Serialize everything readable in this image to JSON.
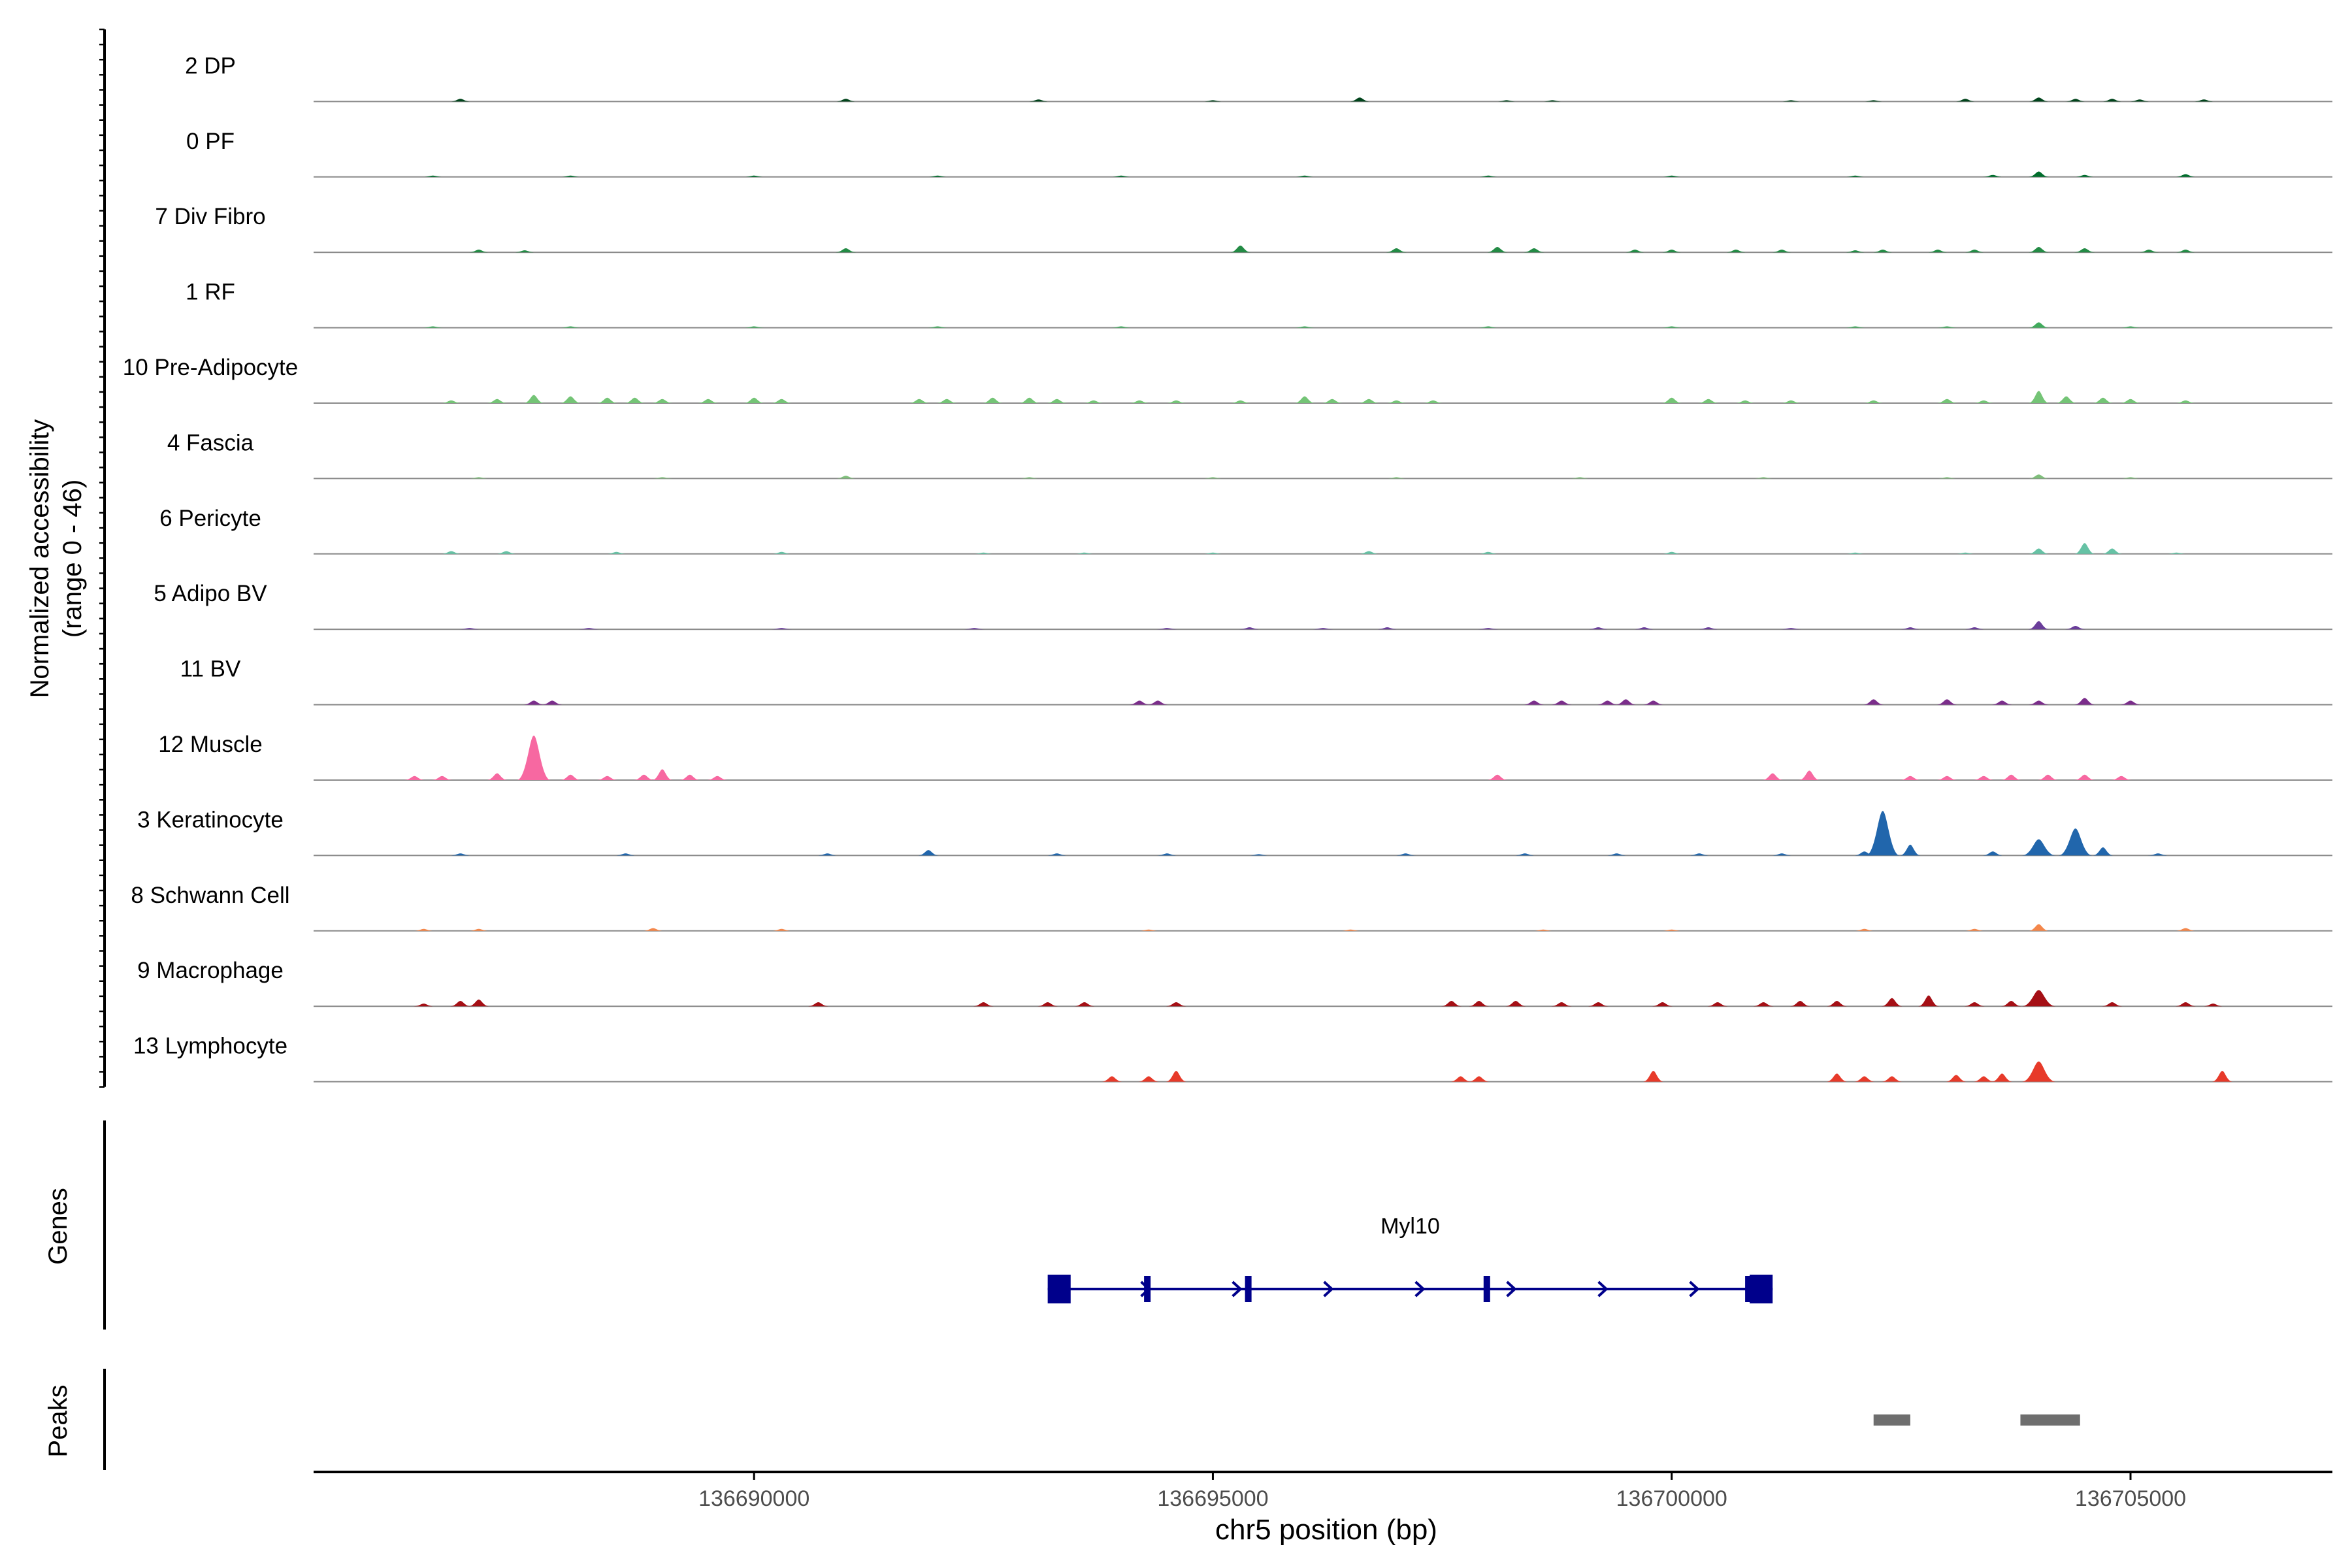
{
  "chart_data": {
    "type": "area",
    "chromosome": "chr5",
    "xlabel": "chr5 position (bp)",
    "ylabel_line1": "Normalized accessibility",
    "ylabel_line2": "(range 0 - 46)",
    "xlim": [
      136685200,
      136707200
    ],
    "xticks": [
      136690000,
      136695000,
      136700000,
      136705000
    ],
    "tick_labels": [
      "136690000",
      "136695000",
      "136700000",
      "136705000"
    ],
    "ylim": [
      0,
      46
    ],
    "series": [
      {
        "name": "2 DP",
        "color": "#00441b",
        "peaks": [
          [
            136686800,
            2
          ],
          [
            136691000,
            2
          ],
          [
            136693100,
            1.5
          ],
          [
            136695000,
            1
          ],
          [
            136696600,
            3
          ],
          [
            136698200,
            1
          ],
          [
            136698700,
            1
          ],
          [
            136701300,
            1
          ],
          [
            136702200,
            1
          ],
          [
            136703200,
            2
          ],
          [
            136704000,
            3
          ],
          [
            136704400,
            2
          ],
          [
            136704800,
            2
          ],
          [
            136705100,
            1.5
          ],
          [
            136705800,
            1.5
          ]
        ]
      },
      {
        "name": "0 PF",
        "color": "#006d2c",
        "peaks": [
          [
            136686500,
            1
          ],
          [
            136688000,
            1
          ],
          [
            136690000,
            1
          ],
          [
            136692000,
            1
          ],
          [
            136694000,
            1
          ],
          [
            136696000,
            1
          ],
          [
            136698000,
            1
          ],
          [
            136700000,
            1
          ],
          [
            136702000,
            1
          ],
          [
            136703500,
            1.5
          ],
          [
            136704000,
            4
          ],
          [
            136704500,
            1.5
          ],
          [
            136705600,
            2
          ]
        ]
      },
      {
        "name": "7 Div Fibro",
        "color": "#238b45",
        "peaks": [
          [
            136687000,
            2
          ],
          [
            136687500,
            1.5
          ],
          [
            136691000,
            3
          ],
          [
            136695300,
            5
          ],
          [
            136697000,
            3
          ],
          [
            136698100,
            4
          ],
          [
            136698500,
            3
          ],
          [
            136699600,
            2
          ],
          [
            136700000,
            2
          ],
          [
            136700700,
            2
          ],
          [
            136701200,
            2
          ],
          [
            136702300,
            2
          ],
          [
            136702900,
            2
          ],
          [
            136703300,
            2
          ],
          [
            136704000,
            4
          ],
          [
            136704500,
            3
          ],
          [
            136705200,
            2
          ],
          [
            136705600,
            2
          ],
          [
            136702000,
            1.5
          ]
        ]
      },
      {
        "name": "1 RF",
        "color": "#41ab5d",
        "peaks": [
          [
            136686500,
            1
          ],
          [
            136688000,
            1
          ],
          [
            136690000,
            1
          ],
          [
            136692000,
            1
          ],
          [
            136694000,
            1
          ],
          [
            136696000,
            1
          ],
          [
            136698000,
            1
          ],
          [
            136700000,
            1
          ],
          [
            136702000,
            1
          ],
          [
            136703000,
            1
          ],
          [
            136704000,
            4
          ],
          [
            136705000,
            1
          ]
        ]
      },
      {
        "name": "10 Pre-Adipocyte",
        "color": "#74c476",
        "peaks": [
          [
            136686700,
            2
          ],
          [
            136687200,
            3
          ],
          [
            136687600,
            6
          ],
          [
            136688000,
            5
          ],
          [
            136688400,
            4
          ],
          [
            136688700,
            4
          ],
          [
            136689000,
            3
          ],
          [
            136689500,
            3
          ],
          [
            136690000,
            4
          ],
          [
            136690300,
            3
          ],
          [
            136691800,
            3
          ],
          [
            136692100,
            3
          ],
          [
            136692600,
            4
          ],
          [
            136693000,
            4
          ],
          [
            136693300,
            3
          ],
          [
            136693700,
            2
          ],
          [
            136694200,
            2
          ],
          [
            136694600,
            2
          ],
          [
            136695300,
            2
          ],
          [
            136696000,
            5
          ],
          [
            136696300,
            3
          ],
          [
            136696700,
            3
          ],
          [
            136697000,
            2
          ],
          [
            136697400,
            2
          ],
          [
            136700000,
            4
          ],
          [
            136700400,
            3
          ],
          [
            136700800,
            2
          ],
          [
            136701300,
            2
          ],
          [
            136702200,
            2
          ],
          [
            136703000,
            3
          ],
          [
            136703400,
            2
          ],
          [
            136704000,
            9
          ],
          [
            136704300,
            5
          ],
          [
            136704700,
            4
          ],
          [
            136705000,
            3
          ],
          [
            136705600,
            2
          ]
        ]
      },
      {
        "name": "4 Fascia",
        "color": "#7fbf7b",
        "peaks": [
          [
            136687000,
            1
          ],
          [
            136689000,
            1
          ],
          [
            136691000,
            2
          ],
          [
            136693000,
            1
          ],
          [
            136695000,
            1
          ],
          [
            136697000,
            1
          ],
          [
            136699000,
            1
          ],
          [
            136701000,
            1
          ],
          [
            136703000,
            1
          ],
          [
            136704000,
            3
          ],
          [
            136705000,
            1
          ]
        ]
      },
      {
        "name": "6 Pericyte",
        "color": "#66c2a5",
        "peaks": [
          [
            136686700,
            2
          ],
          [
            136687300,
            2
          ],
          [
            136688500,
            1.5
          ],
          [
            136690300,
            1.5
          ],
          [
            136692500,
            1
          ],
          [
            136693600,
            1
          ],
          [
            136695000,
            1
          ],
          [
            136696700,
            2
          ],
          [
            136698000,
            1.5
          ],
          [
            136700000,
            1.5
          ],
          [
            136702000,
            1
          ],
          [
            136703200,
            1
          ],
          [
            136704000,
            4
          ],
          [
            136704500,
            8
          ],
          [
            136704800,
            4
          ],
          [
            136705500,
            1
          ]
        ]
      },
      {
        "name": "5 Adipo BV",
        "color": "#6a3d9a",
        "peaks": [
          [
            136686900,
            1
          ],
          [
            136688200,
            1
          ],
          [
            136690300,
            1
          ],
          [
            136692400,
            1
          ],
          [
            136694500,
            1
          ],
          [
            136695400,
            1.5
          ],
          [
            136696200,
            1
          ],
          [
            136696900,
            1.5
          ],
          [
            136698000,
            1
          ],
          [
            136699200,
            1.5
          ],
          [
            136699700,
            1.5
          ],
          [
            136700400,
            1.5
          ],
          [
            136701300,
            1
          ],
          [
            136702600,
            1.5
          ],
          [
            136703300,
            1.5
          ],
          [
            136704000,
            6
          ],
          [
            136704400,
            2.5
          ]
        ]
      },
      {
        "name": "11 BV",
        "color": "#7b2d8b",
        "peaks": [
          [
            136687600,
            3
          ],
          [
            136687800,
            3
          ],
          [
            136694200,
            3
          ],
          [
            136694400,
            3
          ],
          [
            136698500,
            3
          ],
          [
            136698800,
            3
          ],
          [
            136699300,
            3
          ],
          [
            136699500,
            4
          ],
          [
            136699800,
            3
          ],
          [
            136702200,
            4
          ],
          [
            136703000,
            4
          ],
          [
            136703600,
            3
          ],
          [
            136704000,
            3
          ],
          [
            136704500,
            5
          ],
          [
            136705000,
            3
          ]
        ]
      },
      {
        "name": "12 Muscle",
        "color": "#f768a1",
        "peaks": [
          [
            136686300,
            3
          ],
          [
            136686600,
            3
          ],
          [
            136687200,
            5
          ],
          [
            136687600,
            33
          ],
          [
            136688000,
            4
          ],
          [
            136688400,
            3
          ],
          [
            136688800,
            4
          ],
          [
            136689000,
            8
          ],
          [
            136689300,
            4
          ],
          [
            136689600,
            3
          ],
          [
            136698100,
            4
          ],
          [
            136701100,
            5
          ],
          [
            136701500,
            7
          ],
          [
            136702600,
            3
          ],
          [
            136703000,
            3
          ],
          [
            136703400,
            3
          ],
          [
            136703700,
            4
          ],
          [
            136704100,
            4
          ],
          [
            136704500,
            4
          ],
          [
            136704900,
            3
          ]
        ]
      },
      {
        "name": "3 Keratinocyte",
        "color": "#2166ac",
        "peaks": [
          [
            136686800,
            1.5
          ],
          [
            136688600,
            1.5
          ],
          [
            136690800,
            1.5
          ],
          [
            136691900,
            4
          ],
          [
            136693300,
            1.5
          ],
          [
            136694500,
            1.5
          ],
          [
            136695500,
            1
          ],
          [
            136697100,
            1.5
          ],
          [
            136698400,
            1.5
          ],
          [
            136699400,
            1.5
          ],
          [
            136700300,
            1.5
          ],
          [
            136701200,
            1.5
          ],
          [
            136702100,
            3
          ],
          [
            136702300,
            33
          ],
          [
            136702600,
            8
          ],
          [
            136703500,
            3
          ],
          [
            136704000,
            12
          ],
          [
            136704400,
            20
          ],
          [
            136704700,
            6
          ],
          [
            136705300,
            1.5
          ]
        ]
      },
      {
        "name": "8 Schwann Cell",
        "color": "#f4874b",
        "peaks": [
          [
            136686400,
            1.5
          ],
          [
            136687000,
            1.5
          ],
          [
            136688900,
            2
          ],
          [
            136690300,
            1.5
          ],
          [
            136694300,
            1
          ],
          [
            136696500,
            1
          ],
          [
            136698600,
            1
          ],
          [
            136700000,
            1
          ],
          [
            136702100,
            1.5
          ],
          [
            136703300,
            1.5
          ],
          [
            136704000,
            5
          ],
          [
            136705600,
            2
          ]
        ]
      },
      {
        "name": "9 Macrophage",
        "color": "#a50f15",
        "peaks": [
          [
            136686400,
            2
          ],
          [
            136686800,
            4
          ],
          [
            136687000,
            5
          ],
          [
            136690700,
            3
          ],
          [
            136692500,
            3
          ],
          [
            136693200,
            3
          ],
          [
            136693600,
            3
          ],
          [
            136694600,
            3
          ],
          [
            136697600,
            4
          ],
          [
            136697900,
            4
          ],
          [
            136698300,
            4
          ],
          [
            136698800,
            3
          ],
          [
            136699200,
            3
          ],
          [
            136699900,
            3
          ],
          [
            136700500,
            3
          ],
          [
            136701000,
            3
          ],
          [
            136701400,
            4
          ],
          [
            136701800,
            4
          ],
          [
            136702400,
            6
          ],
          [
            136702800,
            8
          ],
          [
            136703300,
            3
          ],
          [
            136703700,
            4
          ],
          [
            136704000,
            12
          ],
          [
            136704800,
            3
          ],
          [
            136705600,
            3
          ],
          [
            136705900,
            2
          ]
        ]
      },
      {
        "name": "13 Lymphocyte",
        "color": "#e73a2a",
        "peaks": [
          [
            136693900,
            4
          ],
          [
            136694300,
            4
          ],
          [
            136694600,
            8
          ],
          [
            136697700,
            4
          ],
          [
            136697900,
            4
          ],
          [
            136699800,
            8
          ],
          [
            136701800,
            6
          ],
          [
            136702100,
            4
          ],
          [
            136702400,
            4
          ],
          [
            136703100,
            5
          ],
          [
            136703400,
            4
          ],
          [
            136703600,
            6
          ],
          [
            136704000,
            15
          ],
          [
            136706000,
            8
          ]
        ]
      }
    ],
    "genes": [
      {
        "name": "Myl10",
        "strand": "+",
        "start": 136693200,
        "end": 136701100,
        "color": "#00008b",
        "exons": [
          [
            136693200,
            136693450
          ],
          [
            136694250,
            136694320
          ],
          [
            136695350,
            136695420
          ],
          [
            136697950,
            136698020
          ],
          [
            136700800,
            136700840
          ],
          [
            136700850,
            136701100
          ]
        ]
      }
    ],
    "peaks": [
      [
        136702200,
        136702600
      ],
      [
        136703800,
        136704450
      ]
    ],
    "peak_color": "#6e6e6e",
    "row_labels": {
      "genes": "Genes",
      "peaks": "Peaks"
    }
  }
}
